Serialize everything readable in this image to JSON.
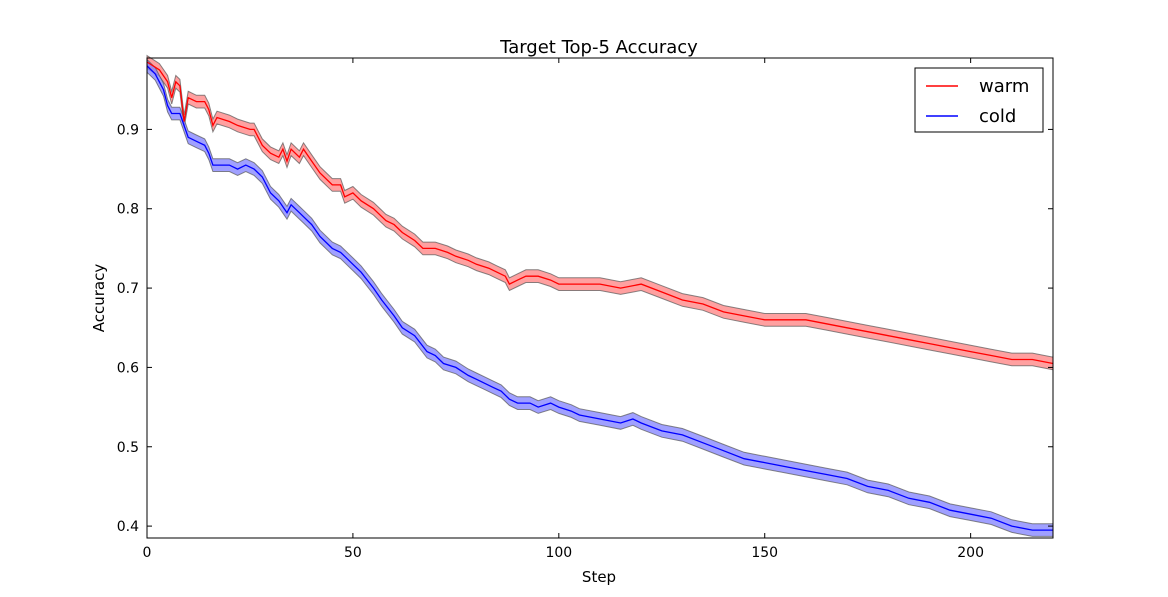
{
  "chart_data": {
    "type": "line",
    "title": "Target Top-5 Accuracy",
    "xlabel": "Step",
    "ylabel": "Accuracy",
    "xlim": [
      0,
      220
    ],
    "ylim": [
      0.385,
      0.99
    ],
    "xticks": [
      "0",
      "50",
      "100",
      "150",
      "200"
    ],
    "yticks": [
      "0.4",
      "0.5",
      "0.6",
      "0.7",
      "0.8",
      "0.9"
    ],
    "legend_position": "top-right",
    "band_note": "shaded band around each line",
    "series": [
      {
        "name": "warm",
        "color": "#ff0000",
        "band_color": "#ff8080",
        "band_halfwidth": 0.008,
        "points": [
          [
            0,
            0.985
          ],
          [
            3,
            0.975
          ],
          [
            5,
            0.96
          ],
          [
            6,
            0.94
          ],
          [
            7,
            0.96
          ],
          [
            8,
            0.955
          ],
          [
            9,
            0.91
          ],
          [
            10,
            0.94
          ],
          [
            12,
            0.935
          ],
          [
            14,
            0.935
          ],
          [
            15,
            0.925
          ],
          [
            16,
            0.905
          ],
          [
            17,
            0.915
          ],
          [
            20,
            0.91
          ],
          [
            22,
            0.905
          ],
          [
            25,
            0.9
          ],
          [
            26,
            0.9
          ],
          [
            28,
            0.88
          ],
          [
            30,
            0.87
          ],
          [
            32,
            0.865
          ],
          [
            33,
            0.875
          ],
          [
            34,
            0.86
          ],
          [
            35,
            0.875
          ],
          [
            37,
            0.865
          ],
          [
            38,
            0.875
          ],
          [
            40,
            0.86
          ],
          [
            42,
            0.845
          ],
          [
            45,
            0.83
          ],
          [
            47,
            0.83
          ],
          [
            48,
            0.815
          ],
          [
            50,
            0.82
          ],
          [
            52,
            0.81
          ],
          [
            55,
            0.8
          ],
          [
            58,
            0.785
          ],
          [
            60,
            0.78
          ],
          [
            62,
            0.77
          ],
          [
            65,
            0.76
          ],
          [
            67,
            0.75
          ],
          [
            70,
            0.75
          ],
          [
            73,
            0.745
          ],
          [
            75,
            0.74
          ],
          [
            78,
            0.735
          ],
          [
            80,
            0.73
          ],
          [
            83,
            0.725
          ],
          [
            85,
            0.72
          ],
          [
            87,
            0.715
          ],
          [
            88,
            0.705
          ],
          [
            90,
            0.71
          ],
          [
            92,
            0.715
          ],
          [
            95,
            0.715
          ],
          [
            98,
            0.71
          ],
          [
            100,
            0.705
          ],
          [
            105,
            0.705
          ],
          [
            110,
            0.705
          ],
          [
            115,
            0.7
          ],
          [
            120,
            0.705
          ],
          [
            125,
            0.695
          ],
          [
            130,
            0.685
          ],
          [
            135,
            0.68
          ],
          [
            140,
            0.67
          ],
          [
            145,
            0.665
          ],
          [
            150,
            0.66
          ],
          [
            155,
            0.66
          ],
          [
            160,
            0.66
          ],
          [
            165,
            0.655
          ],
          [
            170,
            0.65
          ],
          [
            175,
            0.645
          ],
          [
            180,
            0.64
          ],
          [
            185,
            0.635
          ],
          [
            190,
            0.63
          ],
          [
            195,
            0.625
          ],
          [
            200,
            0.62
          ],
          [
            205,
            0.615
          ],
          [
            210,
            0.61
          ],
          [
            215,
            0.61
          ],
          [
            220,
            0.605
          ]
        ]
      },
      {
        "name": "cold",
        "color": "#0000ff",
        "band_color": "#8080ff",
        "band_halfwidth": 0.008,
        "points": [
          [
            0,
            0.98
          ],
          [
            2,
            0.97
          ],
          [
            4,
            0.95
          ],
          [
            5,
            0.93
          ],
          [
            6,
            0.92
          ],
          [
            8,
            0.92
          ],
          [
            10,
            0.89
          ],
          [
            12,
            0.885
          ],
          [
            14,
            0.88
          ],
          [
            15,
            0.87
          ],
          [
            16,
            0.855
          ],
          [
            18,
            0.855
          ],
          [
            20,
            0.855
          ],
          [
            22,
            0.85
          ],
          [
            24,
            0.855
          ],
          [
            26,
            0.85
          ],
          [
            28,
            0.84
          ],
          [
            30,
            0.82
          ],
          [
            32,
            0.81
          ],
          [
            34,
            0.795
          ],
          [
            35,
            0.805
          ],
          [
            37,
            0.795
          ],
          [
            38,
            0.79
          ],
          [
            40,
            0.78
          ],
          [
            42,
            0.765
          ],
          [
            45,
            0.75
          ],
          [
            47,
            0.745
          ],
          [
            48,
            0.74
          ],
          [
            50,
            0.73
          ],
          [
            52,
            0.72
          ],
          [
            55,
            0.7
          ],
          [
            57,
            0.685
          ],
          [
            60,
            0.665
          ],
          [
            62,
            0.65
          ],
          [
            65,
            0.64
          ],
          [
            68,
            0.62
          ],
          [
            70,
            0.615
          ],
          [
            72,
            0.605
          ],
          [
            75,
            0.6
          ],
          [
            78,
            0.59
          ],
          [
            80,
            0.585
          ],
          [
            82,
            0.58
          ],
          [
            84,
            0.575
          ],
          [
            86,
            0.57
          ],
          [
            87,
            0.565
          ],
          [
            88,
            0.56
          ],
          [
            90,
            0.555
          ],
          [
            93,
            0.555
          ],
          [
            95,
            0.55
          ],
          [
            98,
            0.555
          ],
          [
            100,
            0.55
          ],
          [
            103,
            0.545
          ],
          [
            105,
            0.54
          ],
          [
            110,
            0.535
          ],
          [
            115,
            0.53
          ],
          [
            118,
            0.535
          ],
          [
            120,
            0.53
          ],
          [
            125,
            0.52
          ],
          [
            130,
            0.515
          ],
          [
            135,
            0.505
          ],
          [
            140,
            0.495
          ],
          [
            145,
            0.485
          ],
          [
            150,
            0.48
          ],
          [
            155,
            0.475
          ],
          [
            160,
            0.47
          ],
          [
            165,
            0.465
          ],
          [
            170,
            0.46
          ],
          [
            175,
            0.45
          ],
          [
            180,
            0.445
          ],
          [
            185,
            0.435
          ],
          [
            190,
            0.43
          ],
          [
            195,
            0.42
          ],
          [
            200,
            0.415
          ],
          [
            205,
            0.41
          ],
          [
            210,
            0.4
          ],
          [
            215,
            0.395
          ],
          [
            220,
            0.395
          ]
        ]
      }
    ]
  }
}
